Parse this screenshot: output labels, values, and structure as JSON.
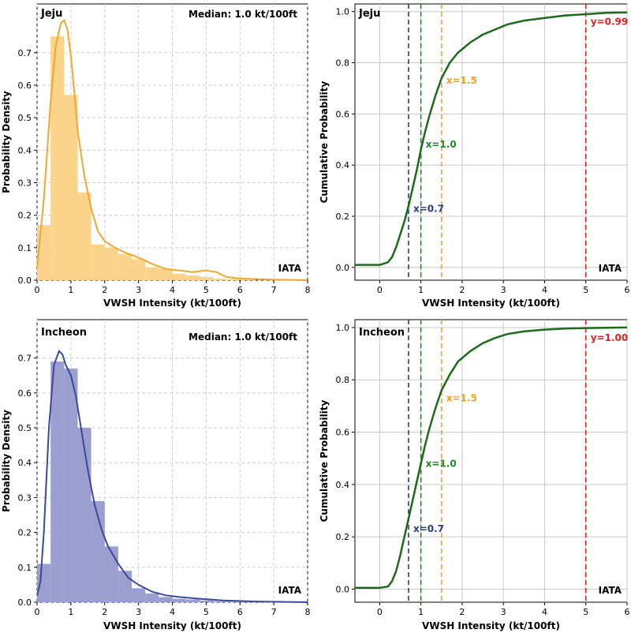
{
  "chart_data": [
    {
      "panel": "jeju-pdf",
      "type": "bar",
      "location": "Jeju",
      "annotation": "Median: 1.0 kt/100ft",
      "corner_label": "IATA",
      "xlabel": "VWSH Intensity (kt/100ft)",
      "ylabel": "Probability Density",
      "xlim": [
        0,
        8
      ],
      "ylim": [
        0,
        0.85
      ],
      "xticks": [
        "0",
        "1",
        "2",
        "3",
        "4",
        "5",
        "6",
        "7",
        "8"
      ],
      "yticks": [
        "0.0",
        "0.1",
        "0.2",
        "0.3",
        "0.4",
        "0.5",
        "0.6",
        "0.7"
      ],
      "grid": true,
      "color": "#f0a830",
      "bar_color": "#fbd38a",
      "bin_width": 0.4,
      "bin_starts": [
        0,
        0.4,
        0.8,
        1.2,
        1.6,
        2.0,
        2.4,
        2.8,
        3.2,
        3.6,
        4.0,
        4.4,
        4.8,
        5.2,
        5.6,
        6.0
      ],
      "values": [
        0.17,
        0.75,
        0.57,
        0.27,
        0.11,
        0.1,
        0.08,
        0.065,
        0.04,
        0.035,
        0.02,
        0.015,
        0.01,
        0.005,
        0.003,
        0.002
      ],
      "kde_x": [
        0,
        0.2,
        0.4,
        0.55,
        0.7,
        0.8,
        0.9,
        1.0,
        1.1,
        1.2,
        1.4,
        1.6,
        1.8,
        2.0,
        2.3,
        2.6,
        3.0,
        3.4,
        3.8,
        4.2,
        4.6,
        5.0,
        5.3,
        5.6,
        6.0,
        7.0,
        8.0
      ],
      "kde_y": [
        0.04,
        0.25,
        0.55,
        0.72,
        0.79,
        0.8,
        0.77,
        0.69,
        0.58,
        0.46,
        0.32,
        0.22,
        0.15,
        0.12,
        0.1,
        0.085,
        0.07,
        0.05,
        0.035,
        0.03,
        0.025,
        0.03,
        0.025,
        0.01,
        0.005,
        0.002,
        0.0
      ]
    },
    {
      "panel": "jeju-cdf",
      "type": "line",
      "location": "Jeju",
      "corner_label": "IATA",
      "xlabel": "VWSH Intensity (kt/100ft)",
      "ylabel": "Cumulative Probability",
      "xlim": [
        -0.6,
        6
      ],
      "ylim": [
        -0.05,
        1.03
      ],
      "xticks": [
        "0",
        "1",
        "2",
        "3",
        "4",
        "5",
        "6"
      ],
      "yticks": [
        "0.0",
        "0.2",
        "0.4",
        "0.6",
        "0.8",
        "1.0"
      ],
      "grid": true,
      "line_color": "#1b6b1b",
      "x": [
        -0.6,
        0.0,
        0.2,
        0.3,
        0.4,
        0.5,
        0.6,
        0.7,
        0.8,
        0.9,
        1.0,
        1.1,
        1.2,
        1.35,
        1.5,
        1.7,
        1.9,
        2.2,
        2.5,
        2.8,
        3.1,
        3.5,
        4.0,
        4.5,
        5.0,
        5.5,
        6.0
      ],
      "y": [
        0.01,
        0.01,
        0.02,
        0.04,
        0.08,
        0.13,
        0.18,
        0.24,
        0.31,
        0.38,
        0.46,
        0.53,
        0.59,
        0.67,
        0.74,
        0.8,
        0.84,
        0.88,
        0.91,
        0.93,
        0.95,
        0.965,
        0.975,
        0.985,
        0.99,
        0.995,
        0.997
      ],
      "vlines": [
        {
          "x": 0.7,
          "label": "x=0.7",
          "label_y": 0.23,
          "color": "#2b3c8c"
        },
        {
          "x": 1.0,
          "label": "x=1.0",
          "label_y": 0.48,
          "color": "#1f8a2a"
        },
        {
          "x": 1.5,
          "label": "x=1.5",
          "label_y": 0.73,
          "color": "#f0a020"
        },
        {
          "x": 5.0,
          "label": "y=0.99",
          "label_y": 0.96,
          "color": "#e02020"
        }
      ]
    },
    {
      "panel": "incheon-pdf",
      "type": "bar",
      "location": "Incheon",
      "annotation": "Median: 1.0 kt/100ft",
      "corner_label": "IATA",
      "xlabel": "VWSH Intensity (kt/100ft)",
      "ylabel": "Probability Density",
      "xlim": [
        0,
        8
      ],
      "ylim": [
        0,
        0.81
      ],
      "xticks": [
        "0",
        "1",
        "2",
        "3",
        "4",
        "5",
        "6",
        "7",
        "8"
      ],
      "yticks": [
        "0.0",
        "0.1",
        "0.2",
        "0.3",
        "0.4",
        "0.5",
        "0.6",
        "0.7"
      ],
      "grid": true,
      "color": "#3a4a9a",
      "bar_color": "#9a9fcf",
      "bin_width": 0.4,
      "bin_starts": [
        0,
        0.4,
        0.8,
        1.2,
        1.6,
        2.0,
        2.4,
        2.8,
        3.2,
        3.6,
        4.0,
        4.4,
        4.8,
        5.2,
        5.6,
        6.0
      ],
      "values": [
        0.11,
        0.69,
        0.67,
        0.5,
        0.29,
        0.16,
        0.09,
        0.04,
        0.025,
        0.015,
        0.01,
        0.008,
        0.005,
        0.003,
        0.002,
        0.001
      ],
      "kde_x": [
        0,
        0.1,
        0.2,
        0.35,
        0.5,
        0.65,
        0.75,
        0.85,
        1.0,
        1.15,
        1.3,
        1.5,
        1.7,
        1.9,
        2.1,
        2.4,
        2.7,
        3.0,
        3.4,
        3.8,
        4.2,
        4.8,
        5.5,
        6.5,
        8.0
      ],
      "kde_y": [
        0.02,
        0.06,
        0.2,
        0.5,
        0.68,
        0.72,
        0.71,
        0.68,
        0.65,
        0.59,
        0.5,
        0.38,
        0.28,
        0.21,
        0.16,
        0.11,
        0.07,
        0.05,
        0.03,
        0.02,
        0.015,
        0.01,
        0.005,
        0.002,
        0.0
      ]
    },
    {
      "panel": "incheon-cdf",
      "type": "line",
      "location": "Incheon",
      "corner_label": "IATA",
      "xlabel": "VWSH Intensity (kt/100ft)",
      "ylabel": "Cumulative Probability",
      "xlim": [
        -0.6,
        6
      ],
      "ylim": [
        -0.05,
        1.03
      ],
      "xticks": [
        "0",
        "1",
        "2",
        "3",
        "4",
        "5",
        "6"
      ],
      "yticks": [
        "0.0",
        "0.2",
        "0.4",
        "0.6",
        "0.8",
        "1.0"
      ],
      "grid": true,
      "line_color": "#1b6b1b",
      "x": [
        -0.6,
        0.0,
        0.2,
        0.3,
        0.4,
        0.5,
        0.6,
        0.7,
        0.8,
        0.9,
        1.0,
        1.1,
        1.2,
        1.35,
        1.5,
        1.7,
        1.9,
        2.2,
        2.5,
        2.8,
        3.1,
        3.5,
        4.0,
        4.5,
        5.0,
        5.5,
        6.0
      ],
      "y": [
        0.005,
        0.005,
        0.01,
        0.03,
        0.07,
        0.13,
        0.2,
        0.27,
        0.34,
        0.41,
        0.48,
        0.55,
        0.61,
        0.69,
        0.76,
        0.82,
        0.87,
        0.91,
        0.94,
        0.96,
        0.975,
        0.985,
        0.992,
        0.996,
        0.998,
        0.999,
        1.0
      ],
      "vlines": [
        {
          "x": 0.7,
          "label": "x=0.7",
          "label_y": 0.23,
          "color": "#2b3c8c"
        },
        {
          "x": 1.0,
          "label": "x=1.0",
          "label_y": 0.48,
          "color": "#1f8a2a"
        },
        {
          "x": 1.5,
          "label": "x=1.5",
          "label_y": 0.73,
          "color": "#f0a020"
        },
        {
          "x": 5.0,
          "label": "y=1.00",
          "label_y": 0.96,
          "color": "#e02020"
        }
      ]
    }
  ]
}
